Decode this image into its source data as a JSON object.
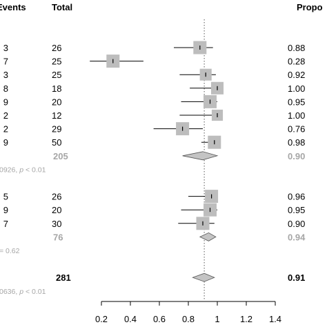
{
  "chart_data": {
    "type": "forest",
    "columns": {
      "events": "Events",
      "total": "Total",
      "proportion": "Propo"
    },
    "x_axis": {
      "range": [
        0.2,
        1.4
      ],
      "ticks": [
        "0.2",
        "0.4",
        "0.6",
        "0.8",
        "1",
        "1.2",
        "1.4"
      ],
      "reference_line": 0.91
    },
    "rows": [
      {
        "kind": "study",
        "events": "3",
        "total": "26",
        "prop": 0.88,
        "prop_label": "0.88",
        "ci": [
          0.7,
          0.97
        ],
        "weight": 1.0
      },
      {
        "kind": "study",
        "events": "7",
        "total": "25",
        "prop": 0.28,
        "prop_label": "0.28",
        "ci": [
          0.12,
          0.49
        ],
        "weight": 1.0
      },
      {
        "kind": "study",
        "events": "3",
        "total": "25",
        "prop": 0.92,
        "prop_label": "0.92",
        "ci": [
          0.74,
          0.99
        ],
        "weight": 0.9
      },
      {
        "kind": "study",
        "events": "8",
        "total": "18",
        "prop": 1.0,
        "prop_label": "1.00",
        "ci": [
          0.81,
          1.0
        ],
        "weight": 0.95
      },
      {
        "kind": "study",
        "events": "9",
        "total": "20",
        "prop": 0.95,
        "prop_label": "0.95",
        "ci": [
          0.75,
          1.0
        ],
        "weight": 1.0
      },
      {
        "kind": "study",
        "events": "2",
        "total": "12",
        "prop": 1.0,
        "prop_label": "1.00",
        "ci": [
          0.74,
          1.0
        ],
        "weight": 0.85
      },
      {
        "kind": "study",
        "events": "2",
        "total": "29",
        "prop": 0.76,
        "prop_label": "0.76",
        "ci": [
          0.56,
          0.9
        ],
        "weight": 1.0
      },
      {
        "kind": "study",
        "events": "9",
        "total": "50",
        "prop": 0.98,
        "prop_label": "0.98",
        "ci": [
          0.89,
          1.0
        ],
        "weight": 1.0
      },
      {
        "kind": "subtotal",
        "total": "205",
        "prop": 0.9,
        "prop_label": "0.90",
        "ci": [
          0.76,
          1.0
        ]
      },
      {
        "kind": "het",
        "text_a": "0926, ",
        "text_p": "p",
        "text_b": " < 0.01"
      },
      {
        "kind": "blank"
      },
      {
        "kind": "study",
        "events": "5",
        "total": "26",
        "prop": 0.96,
        "prop_label": "0.96",
        "ci": [
          0.8,
          1.0
        ],
        "weight": 1.0
      },
      {
        "kind": "study",
        "events": "9",
        "total": "20",
        "prop": 0.95,
        "prop_label": "0.95",
        "ci": [
          0.75,
          1.0
        ],
        "weight": 1.0
      },
      {
        "kind": "study",
        "events": "7",
        "total": "30",
        "prop": 0.9,
        "prop_label": "0.90",
        "ci": [
          0.73,
          0.98
        ],
        "weight": 1.0
      },
      {
        "kind": "subtotal",
        "total": "76",
        "prop": 0.94,
        "prop_label": "0.94",
        "ci": [
          0.88,
          0.99
        ]
      },
      {
        "kind": "het",
        "text_a": "= 0.62",
        "text_p": "",
        "text_b": ""
      },
      {
        "kind": "blank"
      },
      {
        "kind": "overall",
        "total": "281",
        "prop": 0.91,
        "prop_label": "0.91",
        "ci": [
          0.83,
          0.98
        ]
      },
      {
        "kind": "het",
        "text_a": "0636, ",
        "text_p": "p",
        "text_b": " < 0.01"
      }
    ]
  }
}
